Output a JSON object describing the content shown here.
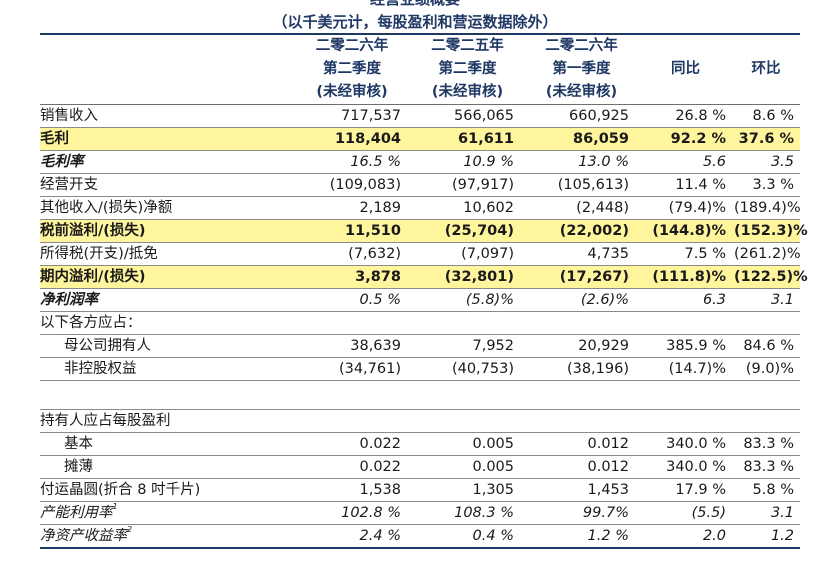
{
  "title": {
    "line1": "经营业绩概要",
    "line2": "（以千美元计，每股盈利和营运数据除外）"
  },
  "columns": {
    "c1": [
      "二零二六年",
      "第二季度",
      "(未经审核)"
    ],
    "c2": [
      "二零二五年",
      "第二季度",
      "(未经审核)"
    ],
    "c3": [
      "二零二六年",
      "第一季度",
      "(未经审核)"
    ],
    "yoy": "同比",
    "qoq": "环比"
  },
  "rows": [
    {
      "label": "销售收入",
      "v1": "717,537",
      "v2": "566,065",
      "v3": "660,925",
      "yoy": "26.8 %",
      "qoq": "8.6 %"
    },
    {
      "label": "毛利",
      "v1": "118,404",
      "v2": "61,611",
      "v3": "86,059",
      "yoy": "92.2 %",
      "qoq": "37.6 %"
    },
    {
      "label": "毛利率",
      "v1": "16.5 %",
      "v2": "10.9 %",
      "v3": "13.0 %",
      "yoy": "5.6",
      "qoq": "3.5"
    },
    {
      "label": "经营开支",
      "v1": "(109,083)",
      "v2": "(97,917)",
      "v3": "(105,613)",
      "yoy": "11.4 %",
      "qoq": "3.3 %"
    },
    {
      "label": "其他收入/(损失)净额",
      "v1": "2,189",
      "v2": "10,602",
      "v3": "(2,448)",
      "yoy": "(79.4)%",
      "qoq": "(189.4)%"
    },
    {
      "label": "税前溢利/(损失)",
      "v1": "11,510",
      "v2": "(25,704)",
      "v3": "(22,002)",
      "yoy": "(144.8)%",
      "qoq": "(152.3)%"
    },
    {
      "label": "所得税(开支)/抵免",
      "v1": "(7,632)",
      "v2": "(7,097)",
      "v3": "4,735",
      "yoy": "7.5 %",
      "qoq": "(261.2)%"
    },
    {
      "label": "期内溢利/(损失)",
      "v1": "3,878",
      "v2": "(32,801)",
      "v3": "(17,267)",
      "yoy": "(111.8)%",
      "qoq": "(122.5)%"
    },
    {
      "label": "净利润率",
      "v1": "0.5 %",
      "v2": "(5.8)%",
      "v3": "(2.6)%",
      "yoy": "6.3",
      "qoq": "3.1"
    },
    {
      "label": "以下各方应占：",
      "v1": "",
      "v2": "",
      "v3": "",
      "yoy": "",
      "qoq": ""
    },
    {
      "label": "母公司拥有人",
      "v1": "38,639",
      "v2": "7,952",
      "v3": "20,929",
      "yoy": "385.9 %",
      "qoq": "84.6 %"
    },
    {
      "label": "非控股权益",
      "v1": "(34,761)",
      "v2": "(40,753)",
      "v3": "(38,196)",
      "yoy": "(14.7)%",
      "qoq": "(9.0)%"
    },
    {
      "label": "",
      "v1": "",
      "v2": "",
      "v3": "",
      "yoy": "",
      "qoq": ""
    },
    {
      "label": "持有人应占每股盈利",
      "v1": "",
      "v2": "",
      "v3": "",
      "yoy": "",
      "qoq": ""
    },
    {
      "label": "基本",
      "v1": "0.022",
      "v2": "0.005",
      "v3": "0.012",
      "yoy": "340.0 %",
      "qoq": "83.3 %"
    },
    {
      "label": "摊薄",
      "v1": "0.022",
      "v2": "0.005",
      "v3": "0.012",
      "yoy": "340.0 %",
      "qoq": "83.3 %"
    },
    {
      "label": "付运晶圆(折合 8 吋千片)",
      "v1": "1,538",
      "v2": "1,305",
      "v3": "1,453",
      "yoy": "17.9 %",
      "qoq": "5.8 %"
    },
    {
      "label": "产能利用率",
      "sup": "1",
      "v1": "102.8 %",
      "v2": "108.3 %",
      "v3": "99.7%",
      "yoy": "(5.5)",
      "qoq": "3.1"
    },
    {
      "label": "净资产收益率",
      "sup": "2",
      "v1": "2.4 %",
      "v2": "0.4 %",
      "v3": "1.2 %",
      "yoy": "2.0",
      "qoq": "1.2"
    }
  ]
}
